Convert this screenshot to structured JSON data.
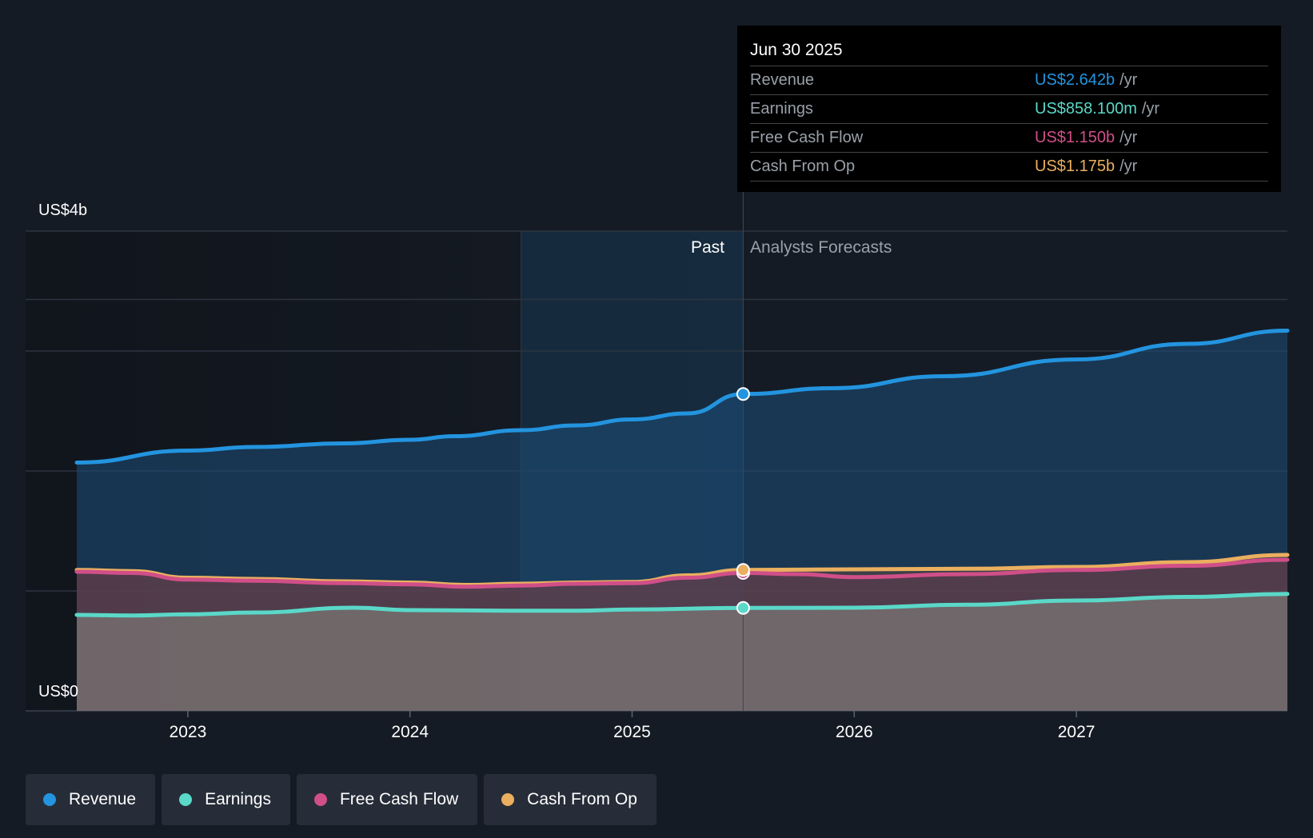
{
  "chart_data": {
    "type": "area",
    "title": "",
    "y_axis": {
      "min": 0,
      "max": 4000000000,
      "top_label": "US$4b",
      "bottom_label": "US$0",
      "unit": "USD",
      "gridlines": [
        0,
        1000000000,
        2000000000,
        3000000000,
        4000000000
      ]
    },
    "x_axis": {
      "range": [
        2022.5,
        2027.95
      ],
      "ticks": [
        2023,
        2024,
        2025,
        2026,
        2027
      ]
    },
    "divider_x": 2025.5,
    "past_highlight_start": 2024.5,
    "region_labels": {
      "past": "Past",
      "forecast": "Analysts Forecasts"
    },
    "series": [
      {
        "key": "revenue",
        "name": "Revenue",
        "color": "#2394df",
        "points": [
          [
            2022.5,
            2070000000
          ],
          [
            2023.0,
            2170000000
          ],
          [
            2023.3,
            2200000000
          ],
          [
            2023.7,
            2230000000
          ],
          [
            2024.0,
            2260000000
          ],
          [
            2024.2,
            2290000000
          ],
          [
            2024.5,
            2340000000
          ],
          [
            2024.75,
            2380000000
          ],
          [
            2025.0,
            2430000000
          ],
          [
            2025.25,
            2480000000
          ],
          [
            2025.5,
            2642000000
          ],
          [
            2025.9,
            2690000000
          ],
          [
            2026.4,
            2790000000
          ],
          [
            2027.0,
            2930000000
          ],
          [
            2027.5,
            3060000000
          ],
          [
            2027.95,
            3170000000
          ]
        ]
      },
      {
        "key": "cfo",
        "name": "Cash From Op",
        "color": "#eaaf5f",
        "points": [
          [
            2022.5,
            1175000000
          ],
          [
            2022.75,
            1165000000
          ],
          [
            2023.0,
            1110000000
          ],
          [
            2023.3,
            1100000000
          ],
          [
            2023.7,
            1080000000
          ],
          [
            2024.0,
            1070000000
          ],
          [
            2024.25,
            1050000000
          ],
          [
            2024.5,
            1060000000
          ],
          [
            2024.75,
            1070000000
          ],
          [
            2025.0,
            1075000000
          ],
          [
            2025.25,
            1130000000
          ],
          [
            2025.5,
            1175000000
          ],
          [
            2026.0,
            1180000000
          ],
          [
            2026.5,
            1185000000
          ],
          [
            2027.0,
            1200000000
          ],
          [
            2027.5,
            1240000000
          ],
          [
            2027.95,
            1300000000
          ]
        ]
      },
      {
        "key": "fcf",
        "name": "Free Cash Flow",
        "color": "#d04f88",
        "points": [
          [
            2022.5,
            1160000000
          ],
          [
            2022.75,
            1150000000
          ],
          [
            2023.0,
            1095000000
          ],
          [
            2023.3,
            1085000000
          ],
          [
            2023.7,
            1065000000
          ],
          [
            2024.0,
            1055000000
          ],
          [
            2024.25,
            1035000000
          ],
          [
            2024.5,
            1045000000
          ],
          [
            2024.75,
            1060000000
          ],
          [
            2025.0,
            1065000000
          ],
          [
            2025.25,
            1110000000
          ],
          [
            2025.5,
            1150000000
          ],
          [
            2025.75,
            1140000000
          ],
          [
            2026.0,
            1115000000
          ],
          [
            2026.5,
            1140000000
          ],
          [
            2027.0,
            1175000000
          ],
          [
            2027.5,
            1210000000
          ],
          [
            2027.95,
            1260000000
          ]
        ]
      },
      {
        "key": "earnings",
        "name": "Earnings",
        "color": "#5ad8c8",
        "points": [
          [
            2022.5,
            800000000
          ],
          [
            2022.75,
            795000000
          ],
          [
            2023.0,
            805000000
          ],
          [
            2023.3,
            820000000
          ],
          [
            2023.75,
            860000000
          ],
          [
            2024.0,
            840000000
          ],
          [
            2024.5,
            835000000
          ],
          [
            2024.75,
            835000000
          ],
          [
            2025.0,
            845000000
          ],
          [
            2025.5,
            858100000
          ],
          [
            2026.0,
            860000000
          ],
          [
            2026.5,
            885000000
          ],
          [
            2027.0,
            920000000
          ],
          [
            2027.5,
            950000000
          ],
          [
            2027.95,
            975000000
          ]
        ]
      }
    ]
  },
  "tooltip": {
    "date": "Jun 30 2025",
    "rows": [
      {
        "name": "Revenue",
        "value": "US$2.642b",
        "unit": "/yr",
        "color": "#2394df"
      },
      {
        "name": "Earnings",
        "value": "US$858.100m",
        "unit": "/yr",
        "color": "#5ad8c8"
      },
      {
        "name": "Free Cash Flow",
        "value": "US$1.150b",
        "unit": "/yr",
        "color": "#d04f88"
      },
      {
        "name": "Cash From Op",
        "value": "US$1.175b",
        "unit": "/yr",
        "color": "#eaaf5f"
      }
    ]
  },
  "legend": [
    {
      "label": "Revenue",
      "color": "#2394df"
    },
    {
      "label": "Earnings",
      "color": "#5ad8c8"
    },
    {
      "label": "Free Cash Flow",
      "color": "#d04f88"
    },
    {
      "label": "Cash From Op",
      "color": "#eaaf5f"
    }
  ]
}
